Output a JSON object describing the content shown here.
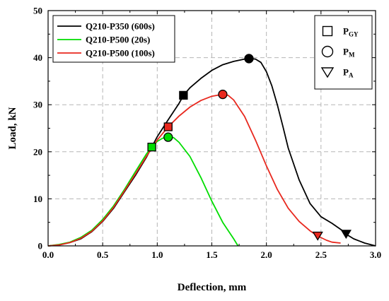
{
  "chart_data": {
    "type": "line",
    "xlabel": "Deflection, mm",
    "ylabel": "Load, kN",
    "xlim": [
      0,
      3.0
    ],
    "ylim": [
      0,
      50
    ],
    "x_ticks": [
      "0.0",
      "0.5",
      "1.0",
      "1.5",
      "2.0",
      "2.5",
      "3.0"
    ],
    "y_ticks": [
      "0",
      "10",
      "20",
      "30",
      "40",
      "50"
    ],
    "grid": "dashed",
    "legend_position": "top-left",
    "marker_legend_position": "top-right",
    "series": [
      {
        "name": "Q210-P350 (600s)",
        "color": "#000000",
        "points": [
          [
            0.0,
            0.0
          ],
          [
            0.1,
            0.2
          ],
          [
            0.2,
            0.7
          ],
          [
            0.3,
            1.5
          ],
          [
            0.4,
            3.0
          ],
          [
            0.5,
            5.2
          ],
          [
            0.6,
            8.0
          ],
          [
            0.7,
            11.5
          ],
          [
            0.8,
            15.0
          ],
          [
            0.9,
            18.8
          ],
          [
            0.95,
            21.0
          ],
          [
            1.0,
            23.2
          ],
          [
            1.1,
            26.8
          ],
          [
            1.2,
            30.3
          ],
          [
            1.24,
            32.0
          ],
          [
            1.3,
            33.6
          ],
          [
            1.4,
            35.6
          ],
          [
            1.5,
            37.3
          ],
          [
            1.6,
            38.5
          ],
          [
            1.7,
            39.2
          ],
          [
            1.8,
            39.7
          ],
          [
            1.84,
            39.8
          ],
          [
            1.9,
            39.7
          ],
          [
            1.95,
            39.0
          ],
          [
            2.0,
            37.0
          ],
          [
            2.05,
            34.0
          ],
          [
            2.1,
            30.0
          ],
          [
            2.15,
            25.5
          ],
          [
            2.2,
            20.8
          ],
          [
            2.3,
            14.0
          ],
          [
            2.4,
            9.0
          ],
          [
            2.5,
            6.2
          ],
          [
            2.6,
            4.8
          ],
          [
            2.7,
            3.2
          ],
          [
            2.73,
            2.5
          ],
          [
            2.8,
            1.5
          ],
          [
            2.9,
            0.6
          ],
          [
            3.0,
            0.0
          ]
        ]
      },
      {
        "name": "Q210-P500 (20s)",
        "color": "#00dd00",
        "points": [
          [
            0.0,
            0.0
          ],
          [
            0.1,
            0.3
          ],
          [
            0.2,
            0.8
          ],
          [
            0.3,
            1.8
          ],
          [
            0.4,
            3.3
          ],
          [
            0.5,
            5.6
          ],
          [
            0.6,
            8.5
          ],
          [
            0.7,
            12.0
          ],
          [
            0.8,
            15.8
          ],
          [
            0.9,
            19.5
          ],
          [
            0.95,
            21.0
          ],
          [
            1.0,
            22.2
          ],
          [
            1.05,
            22.9
          ],
          [
            1.1,
            23.1
          ],
          [
            1.15,
            23.0
          ],
          [
            1.2,
            22.0
          ],
          [
            1.3,
            19.0
          ],
          [
            1.4,
            14.5
          ],
          [
            1.5,
            9.5
          ],
          [
            1.6,
            5.0
          ],
          [
            1.7,
            1.5
          ],
          [
            1.74,
            0.0
          ]
        ]
      },
      {
        "name": "Q210-P500 (100s)",
        "color": "#e8281e",
        "points": [
          [
            0.0,
            0.0
          ],
          [
            0.1,
            0.2
          ],
          [
            0.2,
            0.7
          ],
          [
            0.3,
            1.6
          ],
          [
            0.4,
            3.1
          ],
          [
            0.5,
            5.3
          ],
          [
            0.6,
            8.2
          ],
          [
            0.7,
            11.7
          ],
          [
            0.8,
            15.3
          ],
          [
            0.9,
            19.0
          ],
          [
            1.0,
            22.5
          ],
          [
            1.1,
            25.3
          ],
          [
            1.2,
            27.6
          ],
          [
            1.3,
            29.5
          ],
          [
            1.4,
            30.9
          ],
          [
            1.5,
            31.8
          ],
          [
            1.6,
            32.2
          ],
          [
            1.65,
            32.0
          ],
          [
            1.7,
            31.0
          ],
          [
            1.8,
            27.5
          ],
          [
            1.9,
            22.5
          ],
          [
            2.0,
            17.0
          ],
          [
            2.1,
            12.0
          ],
          [
            2.2,
            8.0
          ],
          [
            2.3,
            5.2
          ],
          [
            2.4,
            3.2
          ],
          [
            2.47,
            2.1
          ],
          [
            2.55,
            1.2
          ],
          [
            2.6,
            0.8
          ],
          [
            2.68,
            0.6
          ]
        ]
      }
    ],
    "markers": [
      {
        "series": "Q210-P350 (600s)",
        "type": "PGY",
        "x": 1.24,
        "y": 32.0
      },
      {
        "series": "Q210-P350 (600s)",
        "type": "PM",
        "x": 1.84,
        "y": 39.8
      },
      {
        "series": "Q210-P350 (600s)",
        "type": "PA",
        "x": 2.73,
        "y": 2.5
      },
      {
        "series": "Q210-P500 (20s)",
        "type": "PGY",
        "x": 0.95,
        "y": 21.0
      },
      {
        "series": "Q210-P500 (20s)",
        "type": "PM",
        "x": 1.1,
        "y": 23.1
      },
      {
        "series": "Q210-P500 (100s)",
        "type": "PGY",
        "x": 1.1,
        "y": 25.3
      },
      {
        "series": "Q210-P500 (100s)",
        "type": "PM",
        "x": 1.6,
        "y": 32.2
      },
      {
        "series": "Q210-P500 (100s)",
        "type": "PA",
        "x": 2.47,
        "y": 2.1
      }
    ],
    "marker_legend": [
      {
        "type": "PGY",
        "shape": "square",
        "label": "P",
        "sub": "GY"
      },
      {
        "type": "PM",
        "shape": "circle",
        "label": "P",
        "sub": "M"
      },
      {
        "type": "PA",
        "shape": "triangle-down",
        "label": "P",
        "sub": "A"
      }
    ]
  }
}
